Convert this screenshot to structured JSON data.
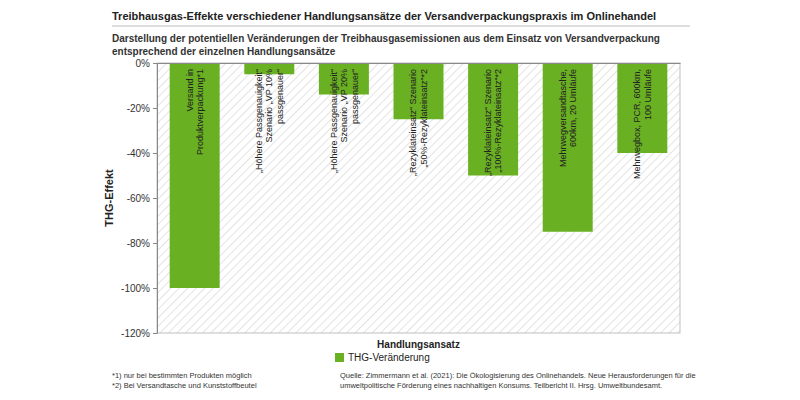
{
  "chart_data": {
    "type": "bar",
    "title": "Treibhausgas-Effekte verschiedener Handlungsansätze der Versandverpackungspraxis im Onlinehandel",
    "subtitle": [
      "Darstellung der potentiellen Veränderungen der Treibhausgasemissionen aus dem Einsatz von Versandverpackung",
      "entsprechend der einzelnen Handlungsansätze"
    ],
    "x_label": "Handlungsansatz",
    "y_label": "THG-Effekt",
    "categories": [
      "Versand in\nProduktverpackung*1",
      "„Höhere Passgenauigkeit“\nSzenario „VP 10%\npassgenauer“",
      "„Höhere Passgenauigkeit“\nSzenario „VP 20%\npassgenauer“",
      "„Rezyklateinsatz“ Szenario\n„50%-Rezyklateinsatz“*2",
      "„Rezyklateinsatz“ Szenario\n„100%-Rezyklateinsatz“*2",
      "Mehrwegversandtasche,\n600km, 20 Umläufe",
      "Mehrwegbox, PCR, 600km,\n100 Umläufe"
    ],
    "series": [
      {
        "name": "THG-Veränderung",
        "color": "#6ab023",
        "values": [
          -100,
          -5,
          -14,
          -25,
          -50,
          -75,
          -40
        ]
      }
    ],
    "ylim": [
      -120,
      0
    ],
    "yticks": [
      {
        "value": 0,
        "label": "0%"
      },
      {
        "value": -20,
        "label": "-20%"
      },
      {
        "value": -40,
        "label": "-40%"
      },
      {
        "value": -60,
        "label": "-60%"
      },
      {
        "value": -80,
        "label": "-80%"
      },
      {
        "value": -100,
        "label": "-100%"
      },
      {
        "value": -120,
        "label": "-120%"
      }
    ],
    "legend": "bottom",
    "footnotes": [
      "*1) nur bei bestimmten Produkten möglich",
      "*2) Bei Versandtasche und Kunststoffbeutel"
    ],
    "source": [
      "Quelle: Zimmermann et al. (2021): Die Ökologisierung des Onlinehandels. Neue Herausforderungen für die",
      "umweltpolitische Förderung eines nachhaltigen Konsums. Teilbericht II. Hrsg. Umweltbundesamt."
    ]
  }
}
